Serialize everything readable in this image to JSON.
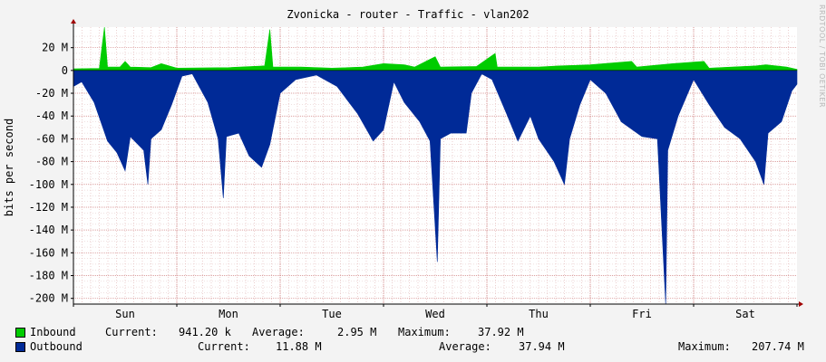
{
  "chart_data": {
    "type": "area",
    "title": "Zvonicka - router - Traffic - vlan202",
    "ylabel": "bits per second",
    "watermark": "RRDTOOL / TOBI OETIKER",
    "ylim": [
      -205000000,
      38000000
    ],
    "yticks": [
      {
        "value": 20000000,
        "label": "20 M"
      },
      {
        "value": 0,
        "label": "0"
      },
      {
        "value": -20000000,
        "label": "-20 M"
      },
      {
        "value": -40000000,
        "label": "-40 M"
      },
      {
        "value": -60000000,
        "label": "-60 M"
      },
      {
        "value": -80000000,
        "label": "-80 M"
      },
      {
        "value": -100000000,
        "label": "-100 M"
      },
      {
        "value": -120000000,
        "label": "-120 M"
      },
      {
        "value": -140000000,
        "label": "-140 M"
      },
      {
        "value": -160000000,
        "label": "-160 M"
      },
      {
        "value": -180000000,
        "label": "-180 M"
      },
      {
        "value": -200000000,
        "label": "-200 M"
      }
    ],
    "x_range_days": [
      0,
      7
    ],
    "categories": [
      "Sun",
      "Mon",
      "Tue",
      "Wed",
      "Thu",
      "Fri",
      "Sat"
    ],
    "series": [
      {
        "name": "Inbound",
        "color": "#00cc00",
        "sign": 1,
        "points": [
          [
            0,
            1.5
          ],
          [
            0.25,
            1.8
          ],
          [
            0.3,
            38
          ],
          [
            0.33,
            3
          ],
          [
            0.45,
            3
          ],
          [
            0.5,
            8
          ],
          [
            0.55,
            3
          ],
          [
            0.75,
            2.5
          ],
          [
            0.85,
            6
          ],
          [
            1.0,
            2
          ],
          [
            1.5,
            2.5
          ],
          [
            1.85,
            4
          ],
          [
            1.9,
            36
          ],
          [
            1.93,
            3
          ],
          [
            2.2,
            3
          ],
          [
            2.5,
            2
          ],
          [
            2.8,
            3
          ],
          [
            3.0,
            6
          ],
          [
            3.2,
            5
          ],
          [
            3.3,
            3
          ],
          [
            3.5,
            12
          ],
          [
            3.55,
            3
          ],
          [
            3.9,
            3.5
          ],
          [
            4.08,
            15
          ],
          [
            4.1,
            3
          ],
          [
            4.5,
            3
          ],
          [
            4.7,
            4
          ],
          [
            5.0,
            5
          ],
          [
            5.4,
            8
          ],
          [
            5.45,
            3
          ],
          [
            5.8,
            6
          ],
          [
            6.1,
            8
          ],
          [
            6.15,
            2
          ],
          [
            6.6,
            4
          ],
          [
            6.7,
            5
          ],
          [
            6.9,
            3
          ],
          [
            7.0,
            1
          ]
        ]
      },
      {
        "name": "Outbound",
        "color": "#002a97",
        "sign": -1,
        "points": [
          [
            0,
            14
          ],
          [
            0.08,
            10
          ],
          [
            0.2,
            28
          ],
          [
            0.33,
            62
          ],
          [
            0.42,
            72
          ],
          [
            0.5,
            88
          ],
          [
            0.55,
            58
          ],
          [
            0.68,
            70
          ],
          [
            0.72,
            100
          ],
          [
            0.75,
            60
          ],
          [
            0.85,
            52
          ],
          [
            0.95,
            30
          ],
          [
            1.05,
            5
          ],
          [
            1.15,
            3
          ],
          [
            1.3,
            28
          ],
          [
            1.4,
            60
          ],
          [
            1.45,
            112
          ],
          [
            1.48,
            58
          ],
          [
            1.6,
            55
          ],
          [
            1.7,
            75
          ],
          [
            1.82,
            85
          ],
          [
            1.9,
            65
          ],
          [
            2.0,
            20
          ],
          [
            2.15,
            8
          ],
          [
            2.35,
            4
          ],
          [
            2.55,
            14
          ],
          [
            2.75,
            38
          ],
          [
            2.9,
            62
          ],
          [
            3.0,
            52
          ],
          [
            3.1,
            10
          ],
          [
            3.2,
            28
          ],
          [
            3.35,
            45
          ],
          [
            3.45,
            62
          ],
          [
            3.52,
            168
          ],
          [
            3.55,
            60
          ],
          [
            3.65,
            55
          ],
          [
            3.8,
            55
          ],
          [
            3.85,
            20
          ],
          [
            3.95,
            3
          ],
          [
            4.05,
            8
          ],
          [
            4.2,
            40
          ],
          [
            4.3,
            62
          ],
          [
            4.42,
            40
          ],
          [
            4.5,
            60
          ],
          [
            4.65,
            80
          ],
          [
            4.75,
            100
          ],
          [
            4.8,
            60
          ],
          [
            4.9,
            30
          ],
          [
            5.0,
            8
          ],
          [
            5.15,
            20
          ],
          [
            5.3,
            45
          ],
          [
            5.5,
            58
          ],
          [
            5.65,
            60
          ],
          [
            5.73,
            205
          ],
          [
            5.75,
            70
          ],
          [
            5.85,
            40
          ],
          [
            6.0,
            8
          ],
          [
            6.15,
            30
          ],
          [
            6.3,
            50
          ],
          [
            6.45,
            60
          ],
          [
            6.6,
            80
          ],
          [
            6.68,
            100
          ],
          [
            6.72,
            55
          ],
          [
            6.85,
            45
          ],
          [
            6.95,
            18
          ],
          [
            7.0,
            12
          ]
        ]
      }
    ],
    "legend": [
      {
        "name": "Inbound",
        "color": "#00cc00",
        "current_label": "Current:",
        "current": "941.20 k",
        "average_label": "Average:",
        "average": "2.95 M",
        "maximum_label": "Maximum:",
        "maximum": "37.92 M"
      },
      {
        "name": "Outbound",
        "color": "#002a97",
        "current_label": "Current:",
        "current": "11.88 M",
        "average_label": "Average:",
        "average": "37.94 M",
        "maximum_label": "Maximum:",
        "maximum": "207.74 M"
      }
    ]
  }
}
